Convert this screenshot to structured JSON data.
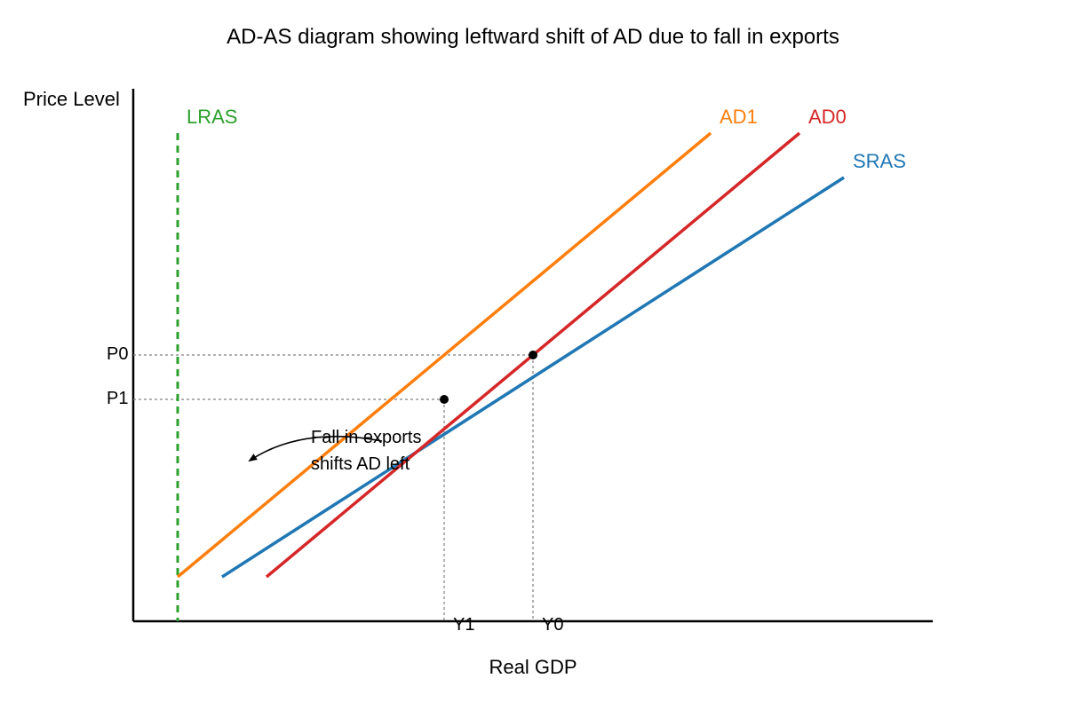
{
  "title": "AD-AS diagram showing leftward shift of AD due to fall in exports",
  "axes": {
    "y_label": "Price Level",
    "x_label": "Real GDP"
  },
  "curves": {
    "lras": {
      "label": "LRAS",
      "color": "#2ca02c",
      "style": "dashed"
    },
    "sras": {
      "label": "SRAS",
      "color": "#1f77b4"
    },
    "ad0": {
      "label": "AD0",
      "color": "#d62728"
    },
    "ad1": {
      "label": "AD1",
      "color": "#ff7f0e"
    }
  },
  "equilibria": {
    "initial": {
      "price_label": "P0",
      "output_label": "Y0"
    },
    "new": {
      "price_label": "P1",
      "output_label": "Y1"
    }
  },
  "annotation": {
    "line1": "Fall in exports",
    "line2": "shifts AD left"
  },
  "colors": {
    "axis": "#000000",
    "guide": "#808080",
    "point": "#000000"
  }
}
